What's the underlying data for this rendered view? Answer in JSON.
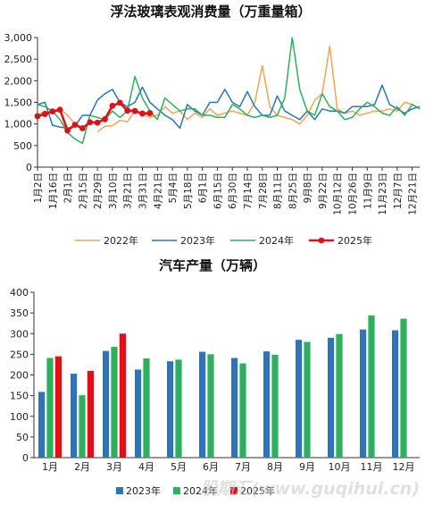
{
  "watermark": "股期汇(www.guqihui.cn)",
  "chart_data": [
    {
      "type": "line",
      "title": "浮法玻璃表观消费量（万重量箱）",
      "xlabel": "",
      "ylabel": "",
      "ylim": [
        0,
        3000
      ],
      "yticks": [
        0,
        500,
        1000,
        1500,
        2000,
        2500,
        3000
      ],
      "yticklabels": [
        "0",
        "500",
        "1,000",
        "1,500",
        "2,000",
        "2,500",
        "3,000"
      ],
      "xlim": [
        1,
        52
      ],
      "xticks": [
        1,
        3,
        5,
        7,
        9,
        11,
        13,
        15,
        17,
        19,
        21,
        23,
        25,
        27,
        29,
        31,
        33,
        35,
        37,
        39,
        41,
        43,
        45,
        47,
        49,
        51
      ],
      "xticklabels": [
        "1月2日",
        "1月16日",
        "2月1日",
        "2月15日",
        "2月29日",
        "3月10日",
        "3月21日",
        "3月31日",
        "4月21日",
        "5月4日",
        "5月18日",
        "6月1日",
        "6月15日",
        "6月30日",
        "7月14日",
        "7月28日",
        "8月11日",
        "8月25日",
        "9月8日",
        "9月22日",
        "10月12日",
        "10月26日",
        "11月9日",
        "11月23日",
        "12月7日",
        "12月21日"
      ],
      "grid": false,
      "legend_position": "bottom",
      "series": [
        {
          "name": "2022年",
          "color": "#F2A45A",
          "marker": false,
          "x": [
            1,
            2,
            3,
            4,
            5,
            6,
            7,
            8,
            9,
            10,
            11,
            12,
            13,
            14,
            15,
            16,
            17,
            18,
            19,
            20,
            21,
            22,
            23,
            24,
            25,
            26,
            27,
            28,
            29,
            30,
            31,
            32,
            33,
            34,
            35,
            36,
            37,
            38,
            39,
            40,
            41,
            42,
            43,
            44,
            45,
            46,
            47,
            48,
            49,
            50,
            51,
            52
          ],
          "values": [
            1200,
            1300,
            1250,
            1350,
            1200,
            1000,
            null,
            null,
            820,
            950,
            960,
            1080,
            1050,
            1300,
            1250,
            1150,
            1200,
            1400,
            1250,
            1300,
            1100,
            1250,
            1150,
            1350,
            1200,
            1250,
            1300,
            1250,
            1200,
            1500,
            2350,
            1400,
            1200,
            1150,
            1100,
            1000,
            1200,
            1550,
            1700,
            2800,
            1350,
            1250,
            1300,
            1200,
            1250,
            1300,
            1300,
            1350,
            1300,
            1500,
            1450,
            1350
          ]
        },
        {
          "name": "2023年",
          "color": "#2E75B6",
          "marker": false,
          "x": [
            1,
            2,
            3,
            4,
            5,
            6,
            7,
            8,
            9,
            10,
            11,
            12,
            13,
            14,
            15,
            16,
            17,
            18,
            19,
            20,
            21,
            22,
            23,
            24,
            25,
            26,
            27,
            28,
            29,
            30,
            31,
            32,
            33,
            34,
            35,
            36,
            37,
            38,
            39,
            40,
            41,
            42,
            43,
            44,
            45,
            46,
            47,
            48,
            49,
            50,
            51,
            52
          ],
          "values": [
            1450,
            1500,
            970,
            930,
            900,
            950,
            1200,
            1200,
            1550,
            1700,
            1800,
            1500,
            1400,
            1500,
            1850,
            1500,
            1350,
            1200,
            1100,
            900,
            1450,
            1300,
            1200,
            1500,
            1500,
            1800,
            1500,
            1400,
            1750,
            1400,
            1200,
            1200,
            1650,
            1300,
            1200,
            1100,
            1300,
            1100,
            1350,
            1300,
            1300,
            1250,
            1400,
            1400,
            1400,
            1450,
            1900,
            1450,
            1350,
            1250,
            1350,
            1400
          ]
        },
        {
          "name": "2024年",
          "color": "#2EAF5C",
          "marker": false,
          "x": [
            1,
            2,
            3,
            4,
            5,
            6,
            7,
            8,
            9,
            10,
            11,
            12,
            13,
            14,
            15,
            16,
            17,
            18,
            19,
            20,
            21,
            22,
            23,
            24,
            25,
            26,
            27,
            28,
            29,
            30,
            31,
            32,
            33,
            34,
            35,
            36,
            37,
            38,
            39,
            40,
            41,
            42,
            43,
            44,
            45,
            46,
            47,
            48,
            49,
            50,
            51,
            52
          ],
          "values": [
            1450,
            1400,
            1300,
            1100,
            800,
            650,
            550,
            1200,
            1150,
            1100,
            1300,
            1150,
            1300,
            2100,
            1600,
            1300,
            1100,
            1600,
            1450,
            1300,
            1350,
            1350,
            1200,
            1200,
            1150,
            1150,
            1450,
            1350,
            1200,
            1150,
            1200,
            1150,
            1200,
            1600,
            3000,
            1800,
            1300,
            1200,
            1700,
            1400,
            1300,
            1100,
            1150,
            1350,
            1500,
            1400,
            1250,
            1200,
            1400,
            1200,
            1450,
            1350
          ]
        },
        {
          "name": "2025年",
          "color": "#E0101A",
          "marker": true,
          "x": [
            1,
            2,
            3,
            4,
            5,
            6,
            7,
            8,
            9,
            10,
            11,
            12,
            13,
            14,
            15,
            16,
            17
          ],
          "values": [
            1180,
            1230,
            1290,
            1330,
            850,
            980,
            900,
            1040,
            1030,
            1110,
            1420,
            1490,
            1310,
            1300,
            1240,
            1250,
            null
          ]
        }
      ]
    },
    {
      "type": "bar",
      "title": "汽车产量（万辆）",
      "xlabel": "",
      "ylabel": "",
      "ylim": [
        0,
        400
      ],
      "yticks": [
        0,
        50,
        100,
        150,
        200,
        250,
        300,
        350,
        400
      ],
      "categories": [
        "1月",
        "2月",
        "3月",
        "4月",
        "5月",
        "6月",
        "7月",
        "8月",
        "9月",
        "10月",
        "11月",
        "12月"
      ],
      "grid": false,
      "legend_position": "bottom",
      "series": [
        {
          "name": "2023年",
          "color": "#2E75B6",
          "values": [
            159,
            203,
            258,
            213,
            233,
            256,
            241,
            257,
            285,
            290,
            310,
            308
          ]
        },
        {
          "name": "2024年",
          "color": "#2EAF5C",
          "values": [
            241,
            151,
            268,
            240,
            237,
            250,
            228,
            249,
            280,
            299,
            344,
            336
          ]
        },
        {
          "name": "2025年",
          "color": "#E0101A",
          "values": [
            245,
            210,
            300,
            null,
            null,
            null,
            null,
            null,
            null,
            null,
            null,
            null
          ]
        }
      ]
    }
  ]
}
